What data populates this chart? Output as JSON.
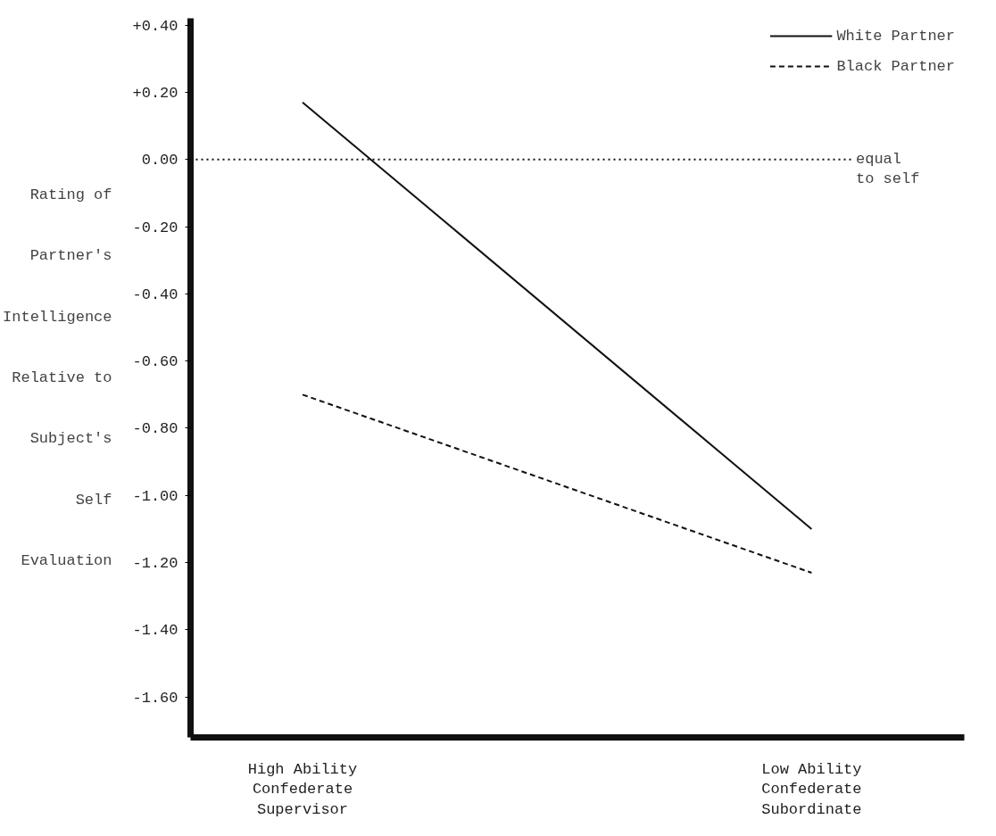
{
  "chart_data": {
    "type": "line",
    "categories": [
      "High Ability\nConfederate\nSupervisor",
      "Low Ability\nConfederate\nSubordinate"
    ],
    "ylabel": "Rating of\nPartner's\nIntelligence\nRelative to\nSubject's\nSelf\nEvaluation",
    "series": [
      {
        "name": "White Partner",
        "color": "#111111",
        "values": [
          0.17,
          -1.1
        ],
        "line_style": "solid"
      },
      {
        "name": "Black Partner",
        "color": "#111111",
        "values": [
          -0.7,
          -1.23
        ],
        "line_style": "dashed"
      }
    ],
    "ylim": [
      -1.72,
      0.42
    ],
    "yticks": [
      {
        "value": 0.4,
        "label": "+0.40"
      },
      {
        "value": 0.2,
        "label": "+0.20"
      },
      {
        "value": 0,
        "label": "0.00"
      },
      {
        "value": -0.2,
        "label": "-0.20"
      },
      {
        "value": -0.4,
        "label": "-0.40"
      },
      {
        "value": -0.6,
        "label": "-0.60"
      },
      {
        "value": -0.8,
        "label": "-0.80"
      },
      {
        "value": -1.0,
        "label": "-1.00"
      },
      {
        "value": -1.2,
        "label": "-1.20"
      },
      {
        "value": -1.4,
        "label": "-1.40"
      },
      {
        "value": -1.6,
        "label": "-1.60"
      }
    ],
    "ref_lines": [
      {
        "axis": "y",
        "value": 0,
        "label": "equal\nto self",
        "line_style": "dotted",
        "color": "#111111"
      }
    ],
    "grid": false,
    "legend": "top right",
    "marker": "none"
  }
}
